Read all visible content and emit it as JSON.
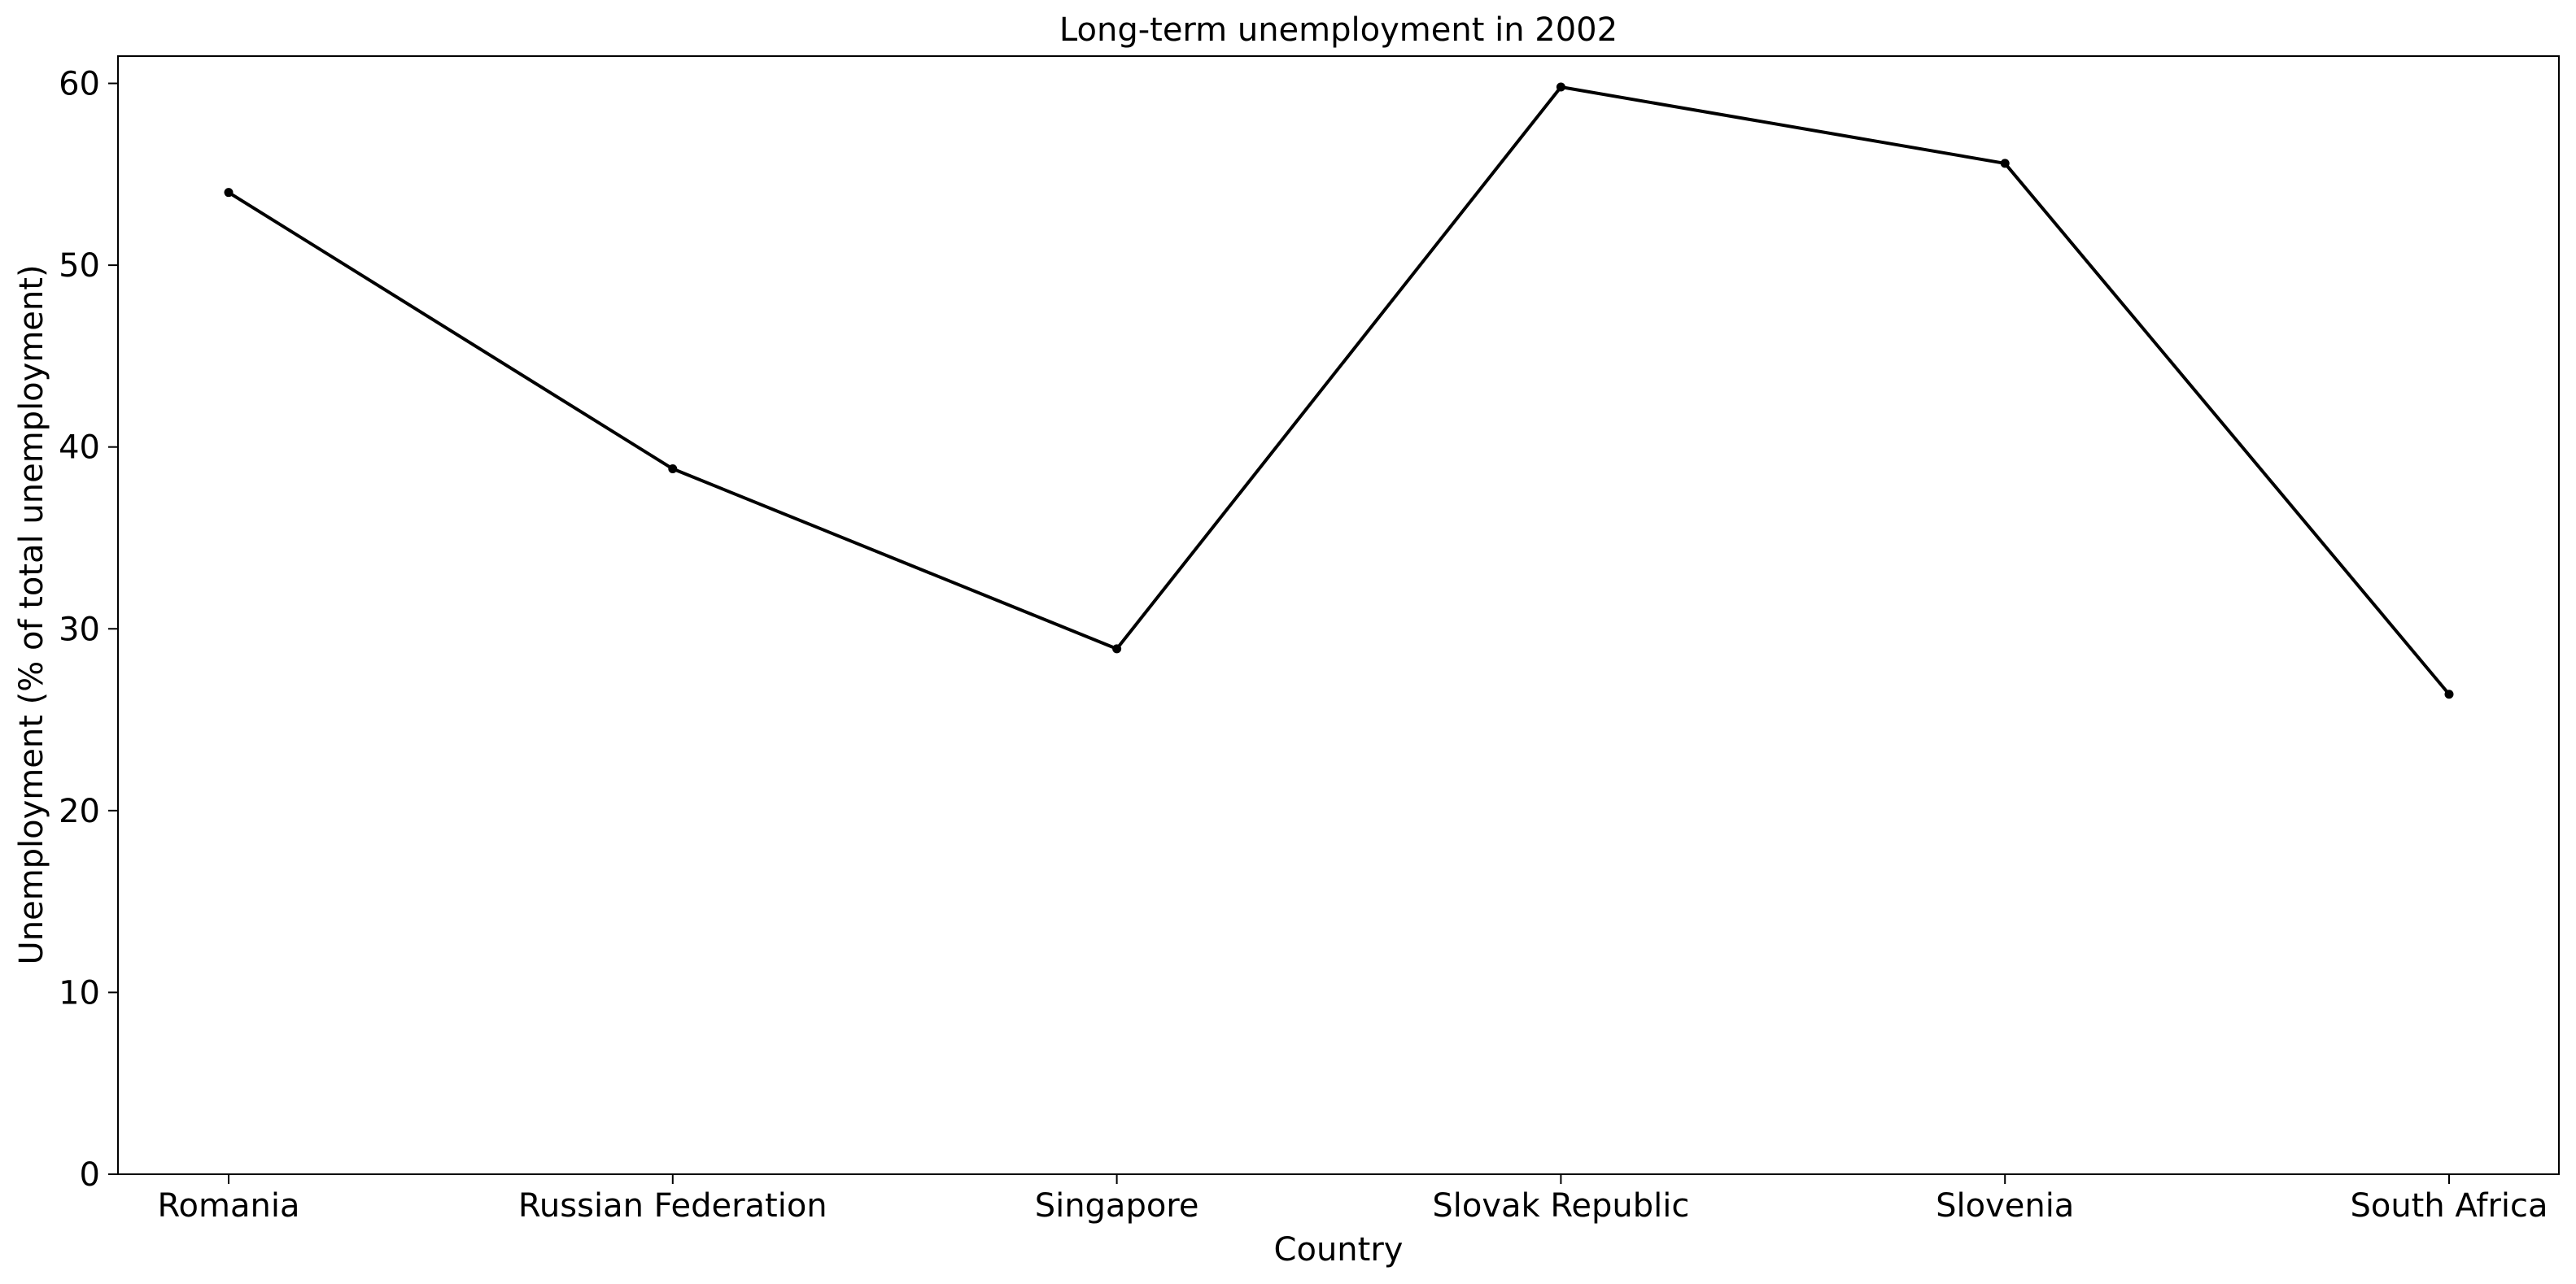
{
  "chart_data": {
    "type": "line",
    "title": "Long-term unemployment in 2002",
    "xlabel": "Country",
    "ylabel": "Unemployment (% of total unemployment)",
    "categories": [
      "Romania",
      "Russian Federation",
      "Singapore",
      "Slovak Republic",
      "Slovenia",
      "South Africa"
    ],
    "series": [
      {
        "values": [
          54.0,
          38.8,
          28.9,
          59.8,
          55.6,
          26.4
        ]
      }
    ],
    "ylim": [
      0,
      61.5
    ],
    "yticks": [
      0,
      10,
      20,
      30,
      40,
      50,
      60
    ],
    "grid": false,
    "legend": "none",
    "colors": {
      "line": "#000000",
      "marker": "#000000",
      "axes": "#000000",
      "background": "#ffffff"
    }
  }
}
